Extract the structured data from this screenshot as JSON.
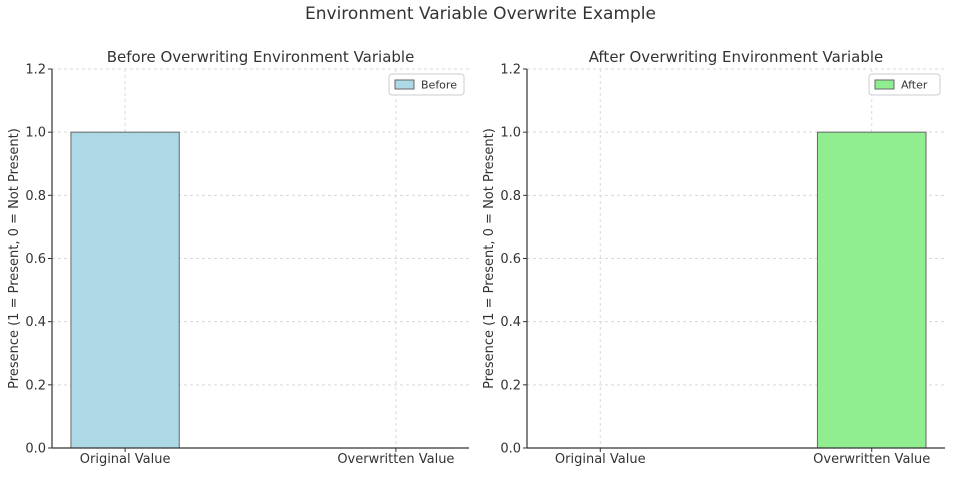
{
  "figure": {
    "title": "Environment Variable Overwrite Example"
  },
  "chart_data": [
    {
      "type": "bar",
      "title": "Before Overwriting Environment Variable",
      "categories": [
        "Original Value",
        "Overwritten Value"
      ],
      "series": [
        {
          "name": "Before",
          "values": [
            1,
            0
          ],
          "color": "#add8e6"
        }
      ],
      "ylabel": "Presence (1 = Present, 0 = Not Present)",
      "xlabel": "",
      "ylim": [
        0,
        1.2
      ],
      "yticks": [
        "0.0",
        "0.2",
        "0.4",
        "0.6",
        "0.8",
        "1.0",
        "1.2"
      ],
      "grid": true,
      "legend": "top-right"
    },
    {
      "type": "bar",
      "title": "After Overwriting Environment Variable",
      "categories": [
        "Original Value",
        "Overwritten Value"
      ],
      "series": [
        {
          "name": "After",
          "values": [
            0,
            1
          ],
          "color": "#90ee90"
        }
      ],
      "ylabel": "Presence (1 = Present, 0 = Not Present)",
      "xlabel": "",
      "ylim": [
        0,
        1.2
      ],
      "yticks": [
        "0.0",
        "0.2",
        "0.4",
        "0.6",
        "0.8",
        "1.0",
        "1.2"
      ],
      "grid": true,
      "legend": "top-right"
    }
  ]
}
